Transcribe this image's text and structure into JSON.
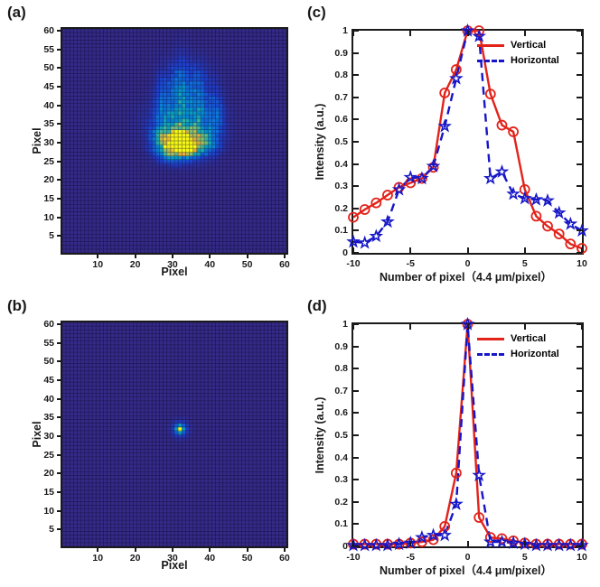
{
  "figure": {
    "background": "#ffffff"
  },
  "colors": {
    "vertical_series": "#e2231a",
    "horizontal_series": "#1616c8",
    "axis": "#1a1a1a",
    "heatmap_grid": "rgba(8,8,40,0.5)",
    "heatmap_background": "#352a87"
  },
  "panels": {
    "a": {
      "label": "(a)",
      "xlabel": "Pixel",
      "ylabel": "Pixel"
    },
    "b": {
      "label": "(b)",
      "xlabel": "Pixel",
      "ylabel": "Pixel"
    },
    "c": {
      "label": "(c)",
      "xlabel": "Number of pixel（4.4 μm/pixel）",
      "ylabel": "Intensity (a.u.)"
    },
    "d": {
      "label": "(d)",
      "xlabel": "Number of pixel（4.4 μm/pixel）",
      "ylabel": "Intensity (a.u.)"
    }
  },
  "chart_data": [
    {
      "panel": "a",
      "type": "heatmap",
      "grid_size": 60,
      "xlabel": "Pixel",
      "ylabel": "Pixel",
      "xlim": [
        1,
        60
      ],
      "ylim": [
        1,
        60
      ],
      "xticks": [
        10,
        20,
        30,
        40,
        50,
        60
      ],
      "yticks": [
        5,
        10,
        15,
        20,
        25,
        30,
        35,
        40,
        45,
        50,
        55,
        60
      ],
      "colormap": "parula",
      "colormap_anchors": [
        [
          0.0,
          [
            53,
            42,
            135
          ]
        ],
        [
          0.12,
          [
            32,
            64,
            205
          ]
        ],
        [
          0.25,
          [
            17,
            109,
            221
          ]
        ],
        [
          0.38,
          [
            7,
            147,
            205
          ]
        ],
        [
          0.5,
          [
            25,
            173,
            178
          ]
        ],
        [
          0.62,
          [
            85,
            188,
            145
          ]
        ],
        [
          0.75,
          [
            160,
            192,
            98
          ]
        ],
        [
          0.87,
          [
            232,
            172,
            58
          ]
        ],
        [
          1.0,
          [
            248,
            250,
            20
          ]
        ]
      ],
      "peaks": [
        {
          "x": 32,
          "y": 31,
          "amp": 1.0,
          "sx": 1.4,
          "sy": 1.7
        },
        {
          "x": 34.5,
          "y": 28.5,
          "amp": 0.8,
          "sx": 1.3,
          "sy": 1.1
        },
        {
          "x": 33,
          "y": 30,
          "amp": 0.5,
          "sx": 4.0,
          "sy": 2.6
        },
        {
          "x": 30,
          "y": 28,
          "amp": 0.45,
          "sx": 2.5,
          "sy": 1.8
        },
        {
          "x": 27.5,
          "y": 31,
          "amp": 0.33,
          "sx": 1.8,
          "sy": 2.2
        },
        {
          "x": 38,
          "y": 30,
          "amp": 0.35,
          "sx": 2.5,
          "sy": 2.0
        },
        {
          "x": 33,
          "y": 35,
          "amp": 0.32,
          "sx": 5.5,
          "sy": 4.0
        },
        {
          "x": 27.5,
          "y": 40,
          "amp": 0.2,
          "sx": 1.5,
          "sy": 5.0
        },
        {
          "x": 32,
          "y": 42,
          "amp": 0.26,
          "sx": 1.6,
          "sy": 6.5
        },
        {
          "x": 36.8,
          "y": 40,
          "amp": 0.23,
          "sx": 1.5,
          "sy": 5.5
        },
        {
          "x": 41.5,
          "y": 37.5,
          "amp": 0.2,
          "sx": 1.4,
          "sy": 4.5
        },
        {
          "x": 34,
          "y": 46,
          "amp": 0.12,
          "sx": 4.5,
          "sy": 4.0
        }
      ],
      "noise_amount": 0.55
    },
    {
      "panel": "b",
      "type": "heatmap",
      "grid_size": 60,
      "xlabel": "Pixel",
      "ylabel": "Pixel",
      "xlim": [
        1,
        60
      ],
      "ylim": [
        1,
        60
      ],
      "xticks": [
        10,
        20,
        30,
        40,
        50,
        60
      ],
      "yticks": [
        5,
        10,
        15,
        20,
        25,
        30,
        35,
        40,
        45,
        50,
        55,
        60
      ],
      "colormap": "parula",
      "colormap_anchors": [
        [
          0.0,
          [
            53,
            42,
            135
          ]
        ],
        [
          0.12,
          [
            32,
            64,
            205
          ]
        ],
        [
          0.25,
          [
            17,
            109,
            221
          ]
        ],
        [
          0.38,
          [
            7,
            147,
            205
          ]
        ],
        [
          0.5,
          [
            25,
            173,
            178
          ]
        ],
        [
          0.62,
          [
            85,
            188,
            145
          ]
        ],
        [
          0.75,
          [
            160,
            192,
            98
          ]
        ],
        [
          0.87,
          [
            232,
            172,
            58
          ]
        ],
        [
          1.0,
          [
            248,
            250,
            20
          ]
        ]
      ],
      "peaks": [
        {
          "x": 32,
          "y": 32,
          "amp": 1.0,
          "sx": 0.55,
          "sy": 0.55
        },
        {
          "x": 32,
          "y": 32,
          "amp": 0.3,
          "sx": 1.35,
          "sy": 1.35
        }
      ],
      "noise_amount": 0
    },
    {
      "panel": "c",
      "type": "line",
      "xlabel": "Number of pixel（4.4 μm/pixel）",
      "ylabel": "Intensity (a.u.)",
      "xlim": [
        -10,
        10
      ],
      "ylim": [
        0,
        1
      ],
      "xticks": [
        -10,
        -5,
        0,
        5,
        10
      ],
      "ytick_labels": [
        "0",
        "0.1",
        "0.2",
        "0.3",
        "0.4",
        "0.5",
        "0.6",
        "0.7",
        "0.8",
        "0.9",
        "1"
      ],
      "legend_position": "top-right",
      "x": [
        -10,
        -9,
        -8,
        -7,
        -6,
        -5,
        -4,
        -3,
        -2,
        -1,
        0,
        1,
        2,
        3,
        4,
        5,
        6,
        7,
        8,
        9,
        10
      ],
      "series": [
        {
          "name": "Vertical",
          "color": "#e2231a",
          "style": "solid",
          "marker": "circle",
          "values": [
            0.16,
            0.195,
            0.225,
            0.26,
            0.295,
            0.315,
            0.335,
            0.385,
            0.72,
            0.825,
            1,
            1,
            0.715,
            0.575,
            0.545,
            0.285,
            0.165,
            0.12,
            0.085,
            0.04,
            0.02
          ]
        },
        {
          "name": "Horizontal",
          "color": "#1616c8",
          "style": "dashed",
          "marker": "star",
          "values": [
            0.05,
            0.045,
            0.075,
            0.14,
            0.285,
            0.34,
            0.335,
            0.39,
            0.57,
            0.785,
            1,
            0.975,
            0.335,
            0.365,
            0.265,
            0.245,
            0.24,
            0.235,
            0.18,
            0.13,
            0.1
          ]
        }
      ]
    },
    {
      "panel": "d",
      "type": "line",
      "xlabel": "Number of pixel（4.4 μm/pixel）",
      "ylabel": "Intensity (a.u.)",
      "xlim": [
        -10,
        10
      ],
      "ylim": [
        0,
        1
      ],
      "xticks": [
        -10,
        -5,
        0,
        5,
        10
      ],
      "ytick_labels": [
        "0",
        "0.1",
        "0.2",
        "0.3",
        "0.4",
        "0.5",
        "0.6",
        "0.7",
        "0.8",
        "0.9",
        "1"
      ],
      "legend_position": "top-right",
      "x": [
        -10,
        -9,
        -8,
        -7,
        -6,
        -5,
        -4,
        -3,
        -2,
        -1,
        0,
        1,
        2,
        3,
        4,
        5,
        6,
        7,
        8,
        9,
        10
      ],
      "series": [
        {
          "name": "Vertical",
          "color": "#e2231a",
          "style": "solid",
          "marker": "circle",
          "values": [
            0.01,
            0.01,
            0.01,
            0.01,
            0.01,
            0.015,
            0.02,
            0.03,
            0.09,
            0.33,
            1,
            0.13,
            0.04,
            0.035,
            0.025,
            0.015,
            0.01,
            0.01,
            0.01,
            0.01,
            0.01
          ]
        },
        {
          "name": "Horizontal",
          "color": "#1616c8",
          "style": "dashed",
          "marker": "star",
          "values": [
            0.005,
            0.005,
            0.005,
            0.005,
            0.01,
            0.015,
            0.04,
            0.05,
            0.05,
            0.19,
            1,
            0.32,
            0.02,
            0.02,
            0.015,
            0.01,
            0.005,
            0.005,
            0.005,
            0.005,
            0.005
          ]
        }
      ]
    }
  ]
}
